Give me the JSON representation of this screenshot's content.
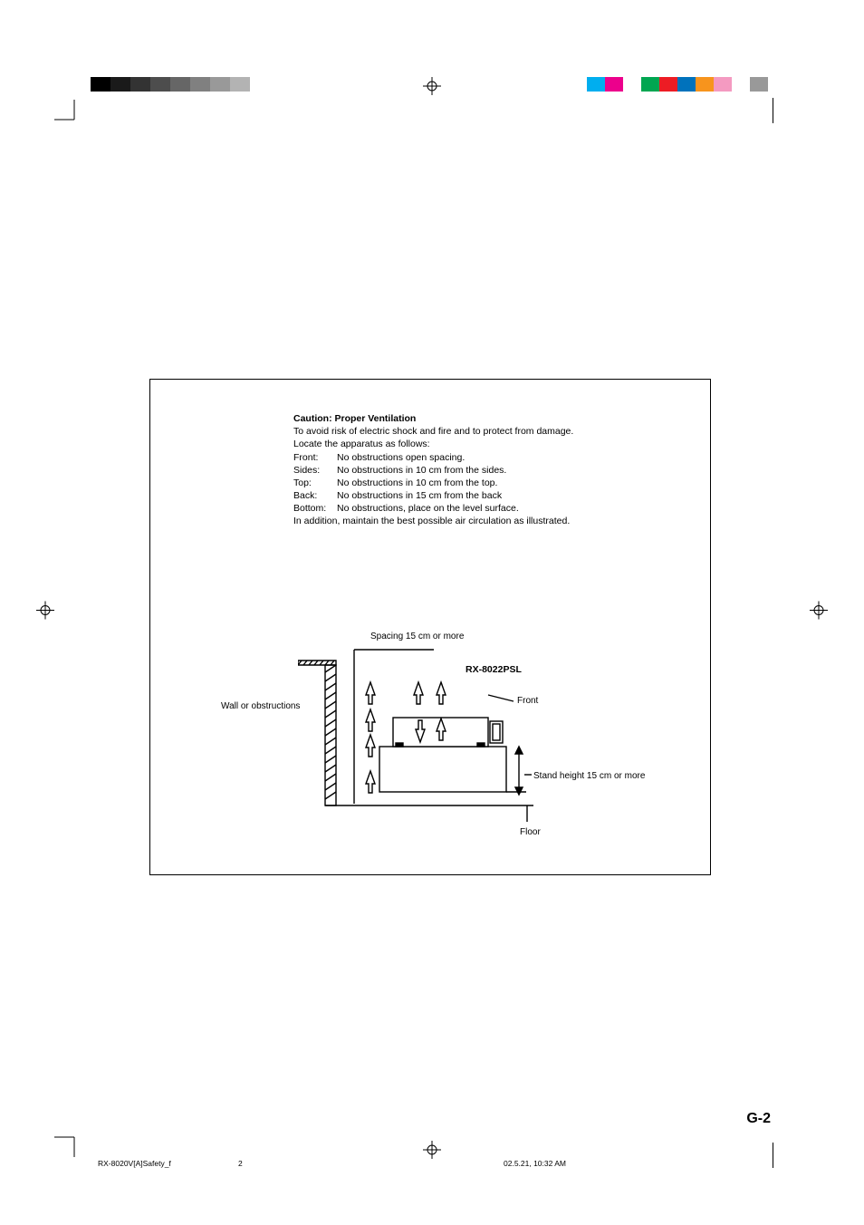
{
  "print_marks": {
    "gray_swatches": [
      "#000000",
      "#1a1a1a",
      "#333333",
      "#4d4d4d",
      "#666666",
      "#808080",
      "#999999",
      "#b3b3b3",
      "#ffffff"
    ],
    "color_swatches": [
      "#00aeef",
      "#ec008c",
      "#ffffff",
      "#00a651",
      "#ed1c24",
      "#0072bc",
      "#f7941d",
      "#f49ac1",
      "#ffffff",
      "#999999"
    ]
  },
  "caution": {
    "title": "Caution: Proper Ventilation",
    "intro": "To avoid risk of electric shock and fire and to protect from damage.",
    "locate": "Locate the apparatus as follows:",
    "rows": [
      {
        "label": "Front:",
        "value": "No obstructions open spacing."
      },
      {
        "label": "Sides:",
        "value": "No obstructions in 10 cm from the sides."
      },
      {
        "label": "Top:",
        "value": "No obstructions in 10 cm from the top."
      },
      {
        "label": "Back:",
        "value": "No obstructions in 15 cm from the back"
      },
      {
        "label": "Bottom:",
        "value": "No obstructions, place on the level surface."
      }
    ],
    "outro": "In addition, maintain the best possible air circulation as illustrated."
  },
  "diagram": {
    "wall_label": "Wall or obstructions",
    "spacing_label": "Spacing 15 cm or more",
    "model": "RX-8022PSL",
    "front_label": "Front",
    "stand_label": "Stand height 15 cm or more",
    "floor_label": "Floor",
    "svg": {
      "stroke": "#000000",
      "stroke_width": 1.4
    }
  },
  "page_number": "G-2",
  "footer": {
    "filename": "RX-8020V[A]Safety_f",
    "page": "2",
    "timestamp": "02.5.21, 10:32 AM"
  }
}
